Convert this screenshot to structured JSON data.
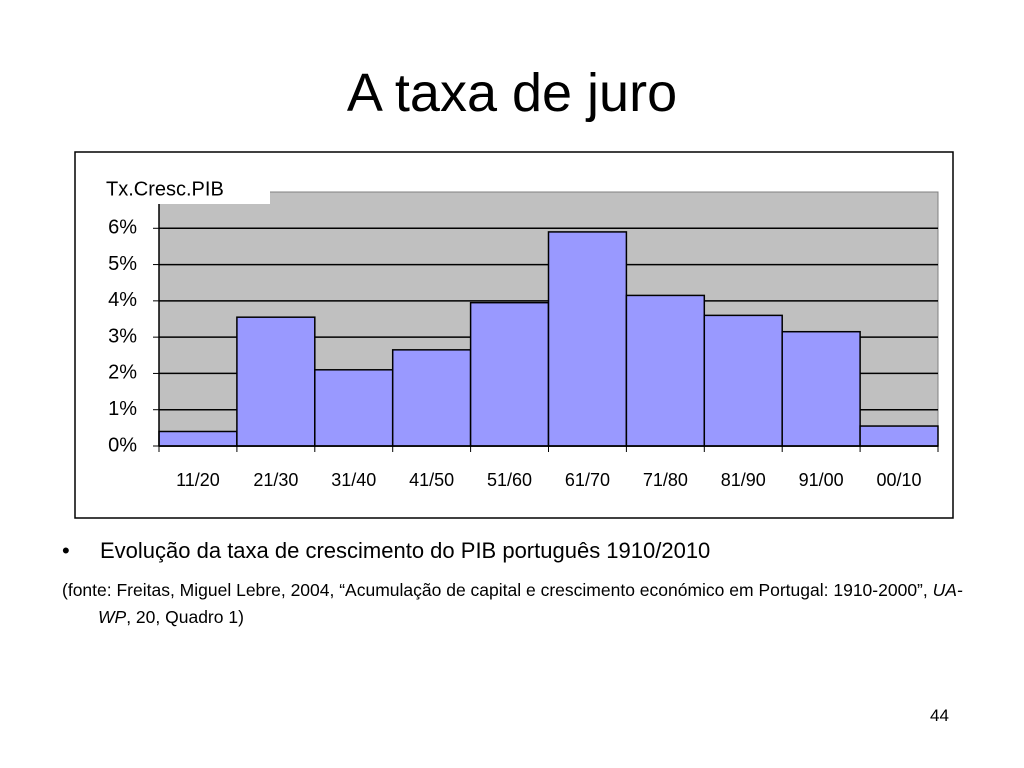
{
  "title": "A taxa de juro",
  "bullet": "Evolução da taxa de crescimento do PIB português 1910/2010",
  "source": {
    "before": "(fonte: Freitas, Miguel Lebre, 2004, “Acumulação de capital e crescimento económico em Portugal: 1910-2000”, ",
    "italic": "UA-WP",
    "after": ", 20, Quadro 1)"
  },
  "page_number": "44",
  "chart_data": {
    "type": "bar",
    "categories": [
      "11/20",
      "21/30",
      "31/40",
      "41/50",
      "51/60",
      "61/70",
      "71/80",
      "81/90",
      "91/00",
      "00/10"
    ],
    "series": [
      {
        "name": "Tx.Cresc.PIB",
        "color": "#9999ff",
        "values": [
          0.4,
          3.55,
          2.1,
          2.65,
          3.95,
          5.9,
          4.15,
          3.6,
          3.15,
          0.55
        ]
      }
    ],
    "ylim": [
      0,
      7
    ],
    "yticks": [
      {
        "value": 0,
        "label": "0%"
      },
      {
        "value": 1,
        "label": "1%"
      },
      {
        "value": 2,
        "label": "2%"
      },
      {
        "value": 3,
        "label": "3%"
      },
      {
        "value": 4,
        "label": "4%"
      },
      {
        "value": 5,
        "label": "5%"
      },
      {
        "value": 6,
        "label": "6%"
      }
    ],
    "grid": true,
    "legend": "top-left",
    "plot_background": "#c0c0c0"
  }
}
